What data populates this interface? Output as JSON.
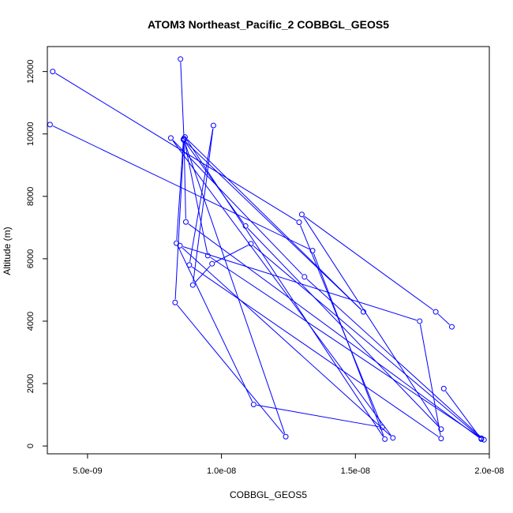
{
  "chart_data": {
    "type": "scatter",
    "title": "ATOM3 Northeast_Pacific_2 COBBGL_GEOS5",
    "xlabel": "COBBGL_GEOS5",
    "ylabel": "Altitude (m)",
    "xlim": [
      3.5e-09,
      2e-08
    ],
    "ylim": [
      -250,
      12800
    ],
    "x_ticks": [
      {
        "value": 5e-09,
        "label": "5.0e-09"
      },
      {
        "value": 1e-08,
        "label": "1.0e-08"
      },
      {
        "value": 1.5e-08,
        "label": "1.5e-08"
      },
      {
        "value": 2e-08,
        "label": "2.0e-08"
      }
    ],
    "y_ticks": [
      {
        "value": 0,
        "label": "0"
      },
      {
        "value": 2000,
        "label": "2000"
      },
      {
        "value": 4000,
        "label": "4000"
      },
      {
        "value": 6000,
        "label": "6000"
      },
      {
        "value": 8000,
        "label": "8000"
      },
      {
        "value": 10000,
        "label": "10000"
      },
      {
        "value": 12000,
        "label": "12000"
      }
    ],
    "grid": false,
    "color": "#0000ff",
    "point_style": "open-circle-with-connecting-lines",
    "series": [
      {
        "points": [
          {
            "x": 3.7e-09,
            "y": 12000
          },
          {
            "x": 1.29e-08,
            "y": 7170
          },
          {
            "x": 1.6e-08,
            "y": 600
          },
          {
            "x": 1.12e-08,
            "y": 1330
          },
          {
            "x": 8.32e-09,
            "y": 6500
          },
          {
            "x": 8.58e-09,
            "y": 9820
          },
          {
            "x": 1.09e-08,
            "y": 7050
          },
          {
            "x": 1.82e-08,
            "y": 540
          },
          {
            "x": 1.3e-08,
            "y": 7420
          },
          {
            "x": 1.8e-08,
            "y": 4300
          },
          {
            "x": 1.86e-08,
            "y": 3820
          }
        ]
      },
      {
        "points": [
          {
            "x": 3.6e-09,
            "y": 10300
          },
          {
            "x": 1.34e-08,
            "y": 6260
          },
          {
            "x": 1.61e-08,
            "y": 220
          },
          {
            "x": 8.64e-09,
            "y": 9900
          },
          {
            "x": 1.53e-08,
            "y": 4300
          },
          {
            "x": 8.6e-09,
            "y": 9800
          },
          {
            "x": 1.24e-08,
            "y": 300
          },
          {
            "x": 8.27e-09,
            "y": 4600
          },
          {
            "x": 8.6e-09,
            "y": 9850
          },
          {
            "x": 8.67e-09,
            "y": 7180
          },
          {
            "x": 1.97e-08,
            "y": 220
          },
          {
            "x": 1.83e-08,
            "y": 1840
          }
        ]
      },
      {
        "points": [
          {
            "x": 8.47e-09,
            "y": 12400
          },
          {
            "x": 8.6e-09,
            "y": 9850
          },
          {
            "x": 9.49e-09,
            "y": 6100
          },
          {
            "x": 1.98e-08,
            "y": 200
          },
          {
            "x": 1.31e-08,
            "y": 5420
          },
          {
            "x": 8.11e-09,
            "y": 9870
          },
          {
            "x": 1.64e-08,
            "y": 260
          },
          {
            "x": 8.45e-09,
            "y": 6420
          },
          {
            "x": 1.74e-08,
            "y": 4000
          },
          {
            "x": 1.82e-08,
            "y": 240
          },
          {
            "x": 8.8e-09,
            "y": 5800
          },
          {
            "x": 9.7e-09,
            "y": 10270
          },
          {
            "x": 8.93e-09,
            "y": 5160
          },
          {
            "x": 9.65e-09,
            "y": 5840
          },
          {
            "x": 1.11e-08,
            "y": 6480
          },
          {
            "x": 1.97e-08,
            "y": 250
          }
        ]
      }
    ]
  }
}
